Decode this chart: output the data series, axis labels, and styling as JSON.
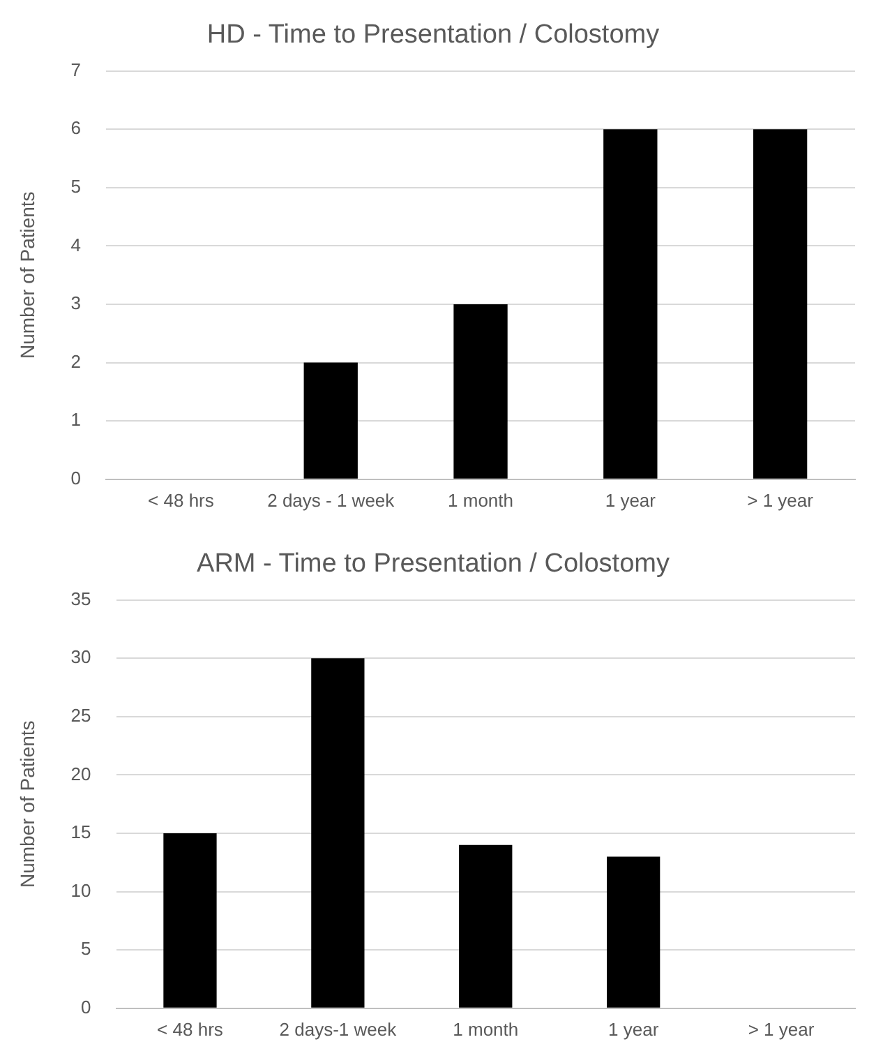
{
  "chart_data": [
    {
      "type": "bar",
      "title": "HD - Time to Presentation / Colostomy",
      "ylabel": "Number of Patients",
      "categories": [
        "< 48 hrs",
        "2 days - 1 week",
        "1 month",
        "1 year",
        "> 1 year"
      ],
      "values": [
        0,
        2,
        3,
        6,
        6
      ],
      "color": "#000000",
      "ylim": [
        0,
        7
      ],
      "yticks": [
        0,
        1,
        2,
        3,
        4,
        5,
        6,
        7
      ],
      "grid": "y"
    },
    {
      "type": "bar",
      "title": "ARM - Time to Presentation / Colostomy",
      "ylabel": "Number of Patients",
      "categories": [
        "< 48 hrs",
        "2 days-1 week",
        "1 month",
        "1 year",
        "> 1 year"
      ],
      "values": [
        15,
        30,
        14,
        13,
        0
      ],
      "color": "#000000",
      "ylim": [
        0,
        35
      ],
      "yticks": [
        0,
        5,
        10,
        15,
        20,
        25,
        30,
        35
      ],
      "grid": "y"
    }
  ]
}
